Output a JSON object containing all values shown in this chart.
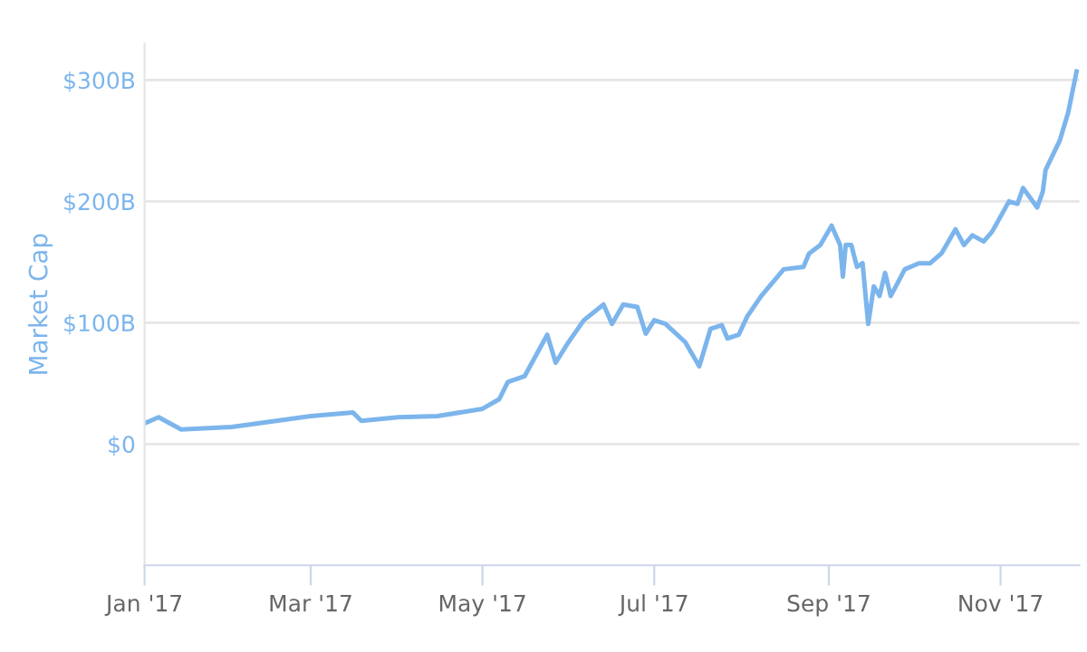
{
  "chart_data": {
    "type": "line",
    "ylabel": "Market Cap",
    "x": [
      "2017-01-01",
      "2017-01-06",
      "2017-01-14",
      "2017-02-01",
      "2017-03-01",
      "2017-03-16",
      "2017-03-19",
      "2017-04-01",
      "2017-04-15",
      "2017-05-01",
      "2017-05-07",
      "2017-05-10",
      "2017-05-16",
      "2017-05-24",
      "2017-05-27",
      "2017-05-31",
      "2017-06-06",
      "2017-06-13",
      "2017-06-16",
      "2017-06-20",
      "2017-06-25",
      "2017-06-28",
      "2017-07-01",
      "2017-07-05",
      "2017-07-12",
      "2017-07-17",
      "2017-07-21",
      "2017-07-25",
      "2017-07-27",
      "2017-07-31",
      "2017-08-03",
      "2017-08-08",
      "2017-08-12",
      "2017-08-16",
      "2017-08-23",
      "2017-08-25",
      "2017-08-29",
      "2017-09-02",
      "2017-09-05",
      "2017-09-06",
      "2017-09-07",
      "2017-09-09",
      "2017-09-11",
      "2017-09-13",
      "2017-09-15",
      "2017-09-17",
      "2017-09-19",
      "2017-09-21",
      "2017-09-23",
      "2017-09-28",
      "2017-10-03",
      "2017-10-07",
      "2017-10-11",
      "2017-10-16",
      "2017-10-19",
      "2017-10-22",
      "2017-10-26",
      "2017-10-29",
      "2017-11-04",
      "2017-11-07",
      "2017-11-09",
      "2017-11-14",
      "2017-11-16",
      "2017-11-17",
      "2017-11-22",
      "2017-11-25",
      "2017-11-28"
    ],
    "series": [
      {
        "color": "#7cb5ec",
        "values": [
          17,
          22,
          12,
          14,
          23,
          26,
          19,
          22,
          23,
          29,
          37,
          51,
          56,
          90,
          67,
          82,
          102,
          115,
          99,
          115,
          113,
          91,
          102,
          99,
          84,
          64,
          95,
          98,
          87,
          90,
          105,
          122,
          133,
          144,
          146,
          157,
          164,
          180,
          164,
          138,
          164,
          164,
          146,
          149,
          99,
          130,
          122,
          141,
          122,
          144,
          149,
          149,
          157,
          177,
          164,
          172,
          167,
          175,
          200,
          198,
          211,
          195,
          208,
          226,
          250,
          273,
          307
        ]
      }
    ],
    "xlim": [
      "2017-01-01",
      "2017-11-29"
    ],
    "xticks": [
      {
        "value": "2017-01-01",
        "label": "Jan '17"
      },
      {
        "value": "2017-03-01",
        "label": "Mar '17"
      },
      {
        "value": "2017-05-01",
        "label": "May '17"
      },
      {
        "value": "2017-07-01",
        "label": "Jul '17"
      },
      {
        "value": "2017-09-01",
        "label": "Sep '17"
      },
      {
        "value": "2017-11-01",
        "label": "Nov '17"
      }
    ],
    "ylim": [
      -100,
      330
    ],
    "yticks": [
      {
        "value": 0,
        "label": "$0"
      },
      {
        "value": 100,
        "label": "$100B"
      },
      {
        "value": 200,
        "label": "$200B"
      },
      {
        "value": 300,
        "label": "$300B"
      }
    ],
    "grid": "y",
    "marker": "none",
    "line_style": "solid"
  }
}
